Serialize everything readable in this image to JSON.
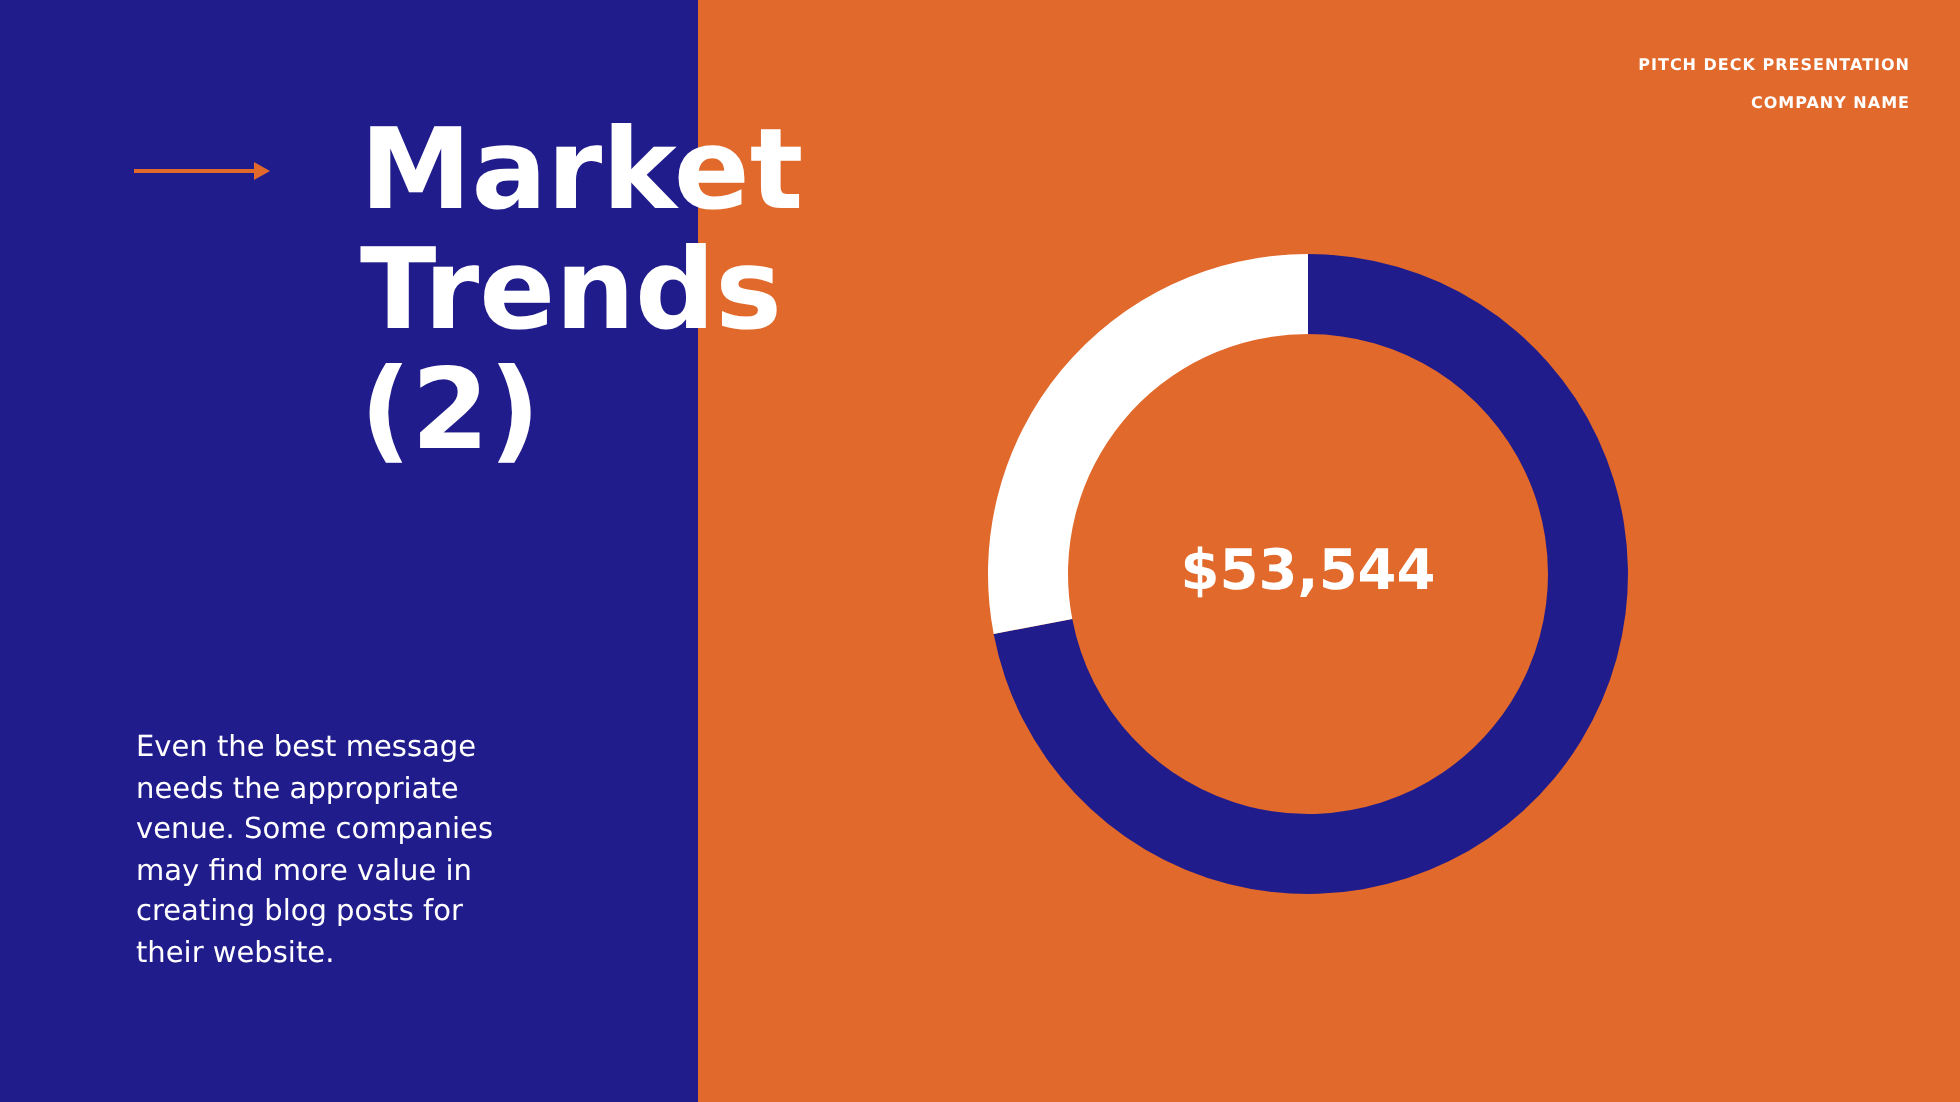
{
  "chart_data": {
    "type": "donut",
    "title": "Market Trends (2)",
    "categories": [
      null,
      null
    ],
    "values": [
      72,
      28
    ],
    "colors": [
      "#211c8c",
      "#ffffff"
    ],
    "legend": false,
    "annotations": [
      "PITCH DECK PRESENTATION",
      "COMPANY NAME",
      "$53,544",
      "Even the best message needs the appropriate venue. Some companies may find more value in creating blog posts for their website."
    ]
  }
}
